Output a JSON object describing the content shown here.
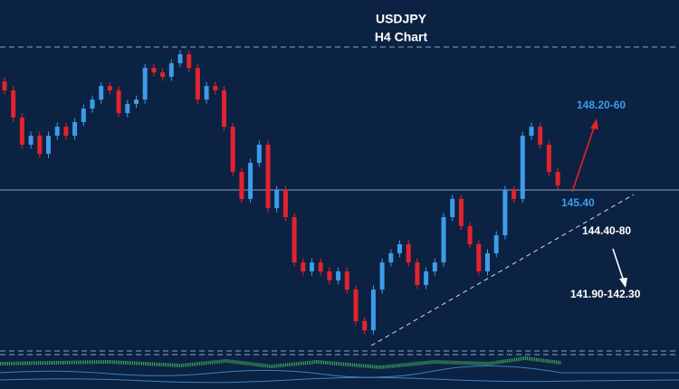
{
  "chart_data": {
    "type": "candlestick",
    "title": "USDJPY",
    "subtitle": "H4 Chart",
    "ylim": [
      139.7,
      150.7
    ],
    "up_color": "#3d9ce8",
    "down_color": "#e3232d",
    "level": 145.4,
    "annotations": [
      "148.20-60",
      "145.40",
      "144.40-80",
      "141.90-142.30"
    ],
    "open": [
      149.4,
      149.07,
      148.07,
      147.07,
      147.4,
      146.73,
      147.4,
      147.73,
      147.4,
      147.9,
      148.4,
      148.73,
      149.23,
      149.07,
      148.23,
      148.57,
      148.73,
      149.9,
      149.73,
      149.57,
      150.07,
      150.4,
      149.9,
      148.73,
      149.23,
      149.07,
      147.73,
      146.07,
      145.07,
      146.4,
      147.07,
      144.73,
      145.4,
      144.4,
      142.73,
      142.4,
      142.73,
      142.4,
      142.07,
      142.4,
      141.73,
      140.57,
      140.23,
      141.73,
      142.73,
      143.07,
      143.4,
      142.73,
      141.9,
      142.4,
      142.73,
      144.4,
      145.07,
      144.07,
      143.4,
      142.4,
      143.07,
      143.73,
      145.4,
      145.07,
      147.4,
      147.73,
      147.07,
      146.07
    ],
    "high": [
      149.55,
      149.22,
      148.22,
      147.55,
      147.55,
      147.55,
      147.88,
      147.88,
      148.05,
      148.55,
      148.88,
      149.38,
      149.38,
      149.22,
      148.72,
      148.88,
      150.05,
      150.05,
      149.88,
      150.22,
      150.55,
      150.55,
      150.05,
      149.38,
      149.38,
      149.22,
      147.88,
      146.22,
      146.55,
      147.22,
      147.22,
      145.55,
      145.55,
      144.55,
      142.88,
      142.88,
      142.88,
      142.55,
      142.55,
      142.55,
      141.88,
      140.72,
      141.88,
      142.88,
      143.22,
      143.55,
      143.55,
      142.88,
      142.55,
      142.88,
      144.55,
      145.22,
      145.22,
      144.22,
      143.55,
      143.22,
      143.88,
      145.55,
      145.55,
      147.55,
      147.88,
      147.88,
      147.22,
      146.22
    ],
    "low": [
      148.92,
      147.92,
      146.92,
      146.92,
      146.58,
      146.58,
      147.25,
      147.25,
      147.25,
      147.75,
      148.25,
      148.58,
      148.92,
      148.08,
      148.08,
      148.42,
      148.58,
      149.58,
      149.42,
      149.42,
      149.92,
      149.75,
      148.58,
      148.58,
      148.92,
      147.58,
      145.92,
      144.92,
      144.92,
      146.25,
      144.58,
      144.58,
      144.25,
      142.58,
      142.25,
      142.25,
      142.25,
      141.92,
      141.92,
      141.58,
      140.42,
      140.08,
      140.08,
      141.58,
      142.58,
      142.92,
      142.58,
      141.75,
      141.75,
      142.25,
      142.58,
      144.25,
      143.92,
      143.25,
      142.25,
      142.25,
      142.92,
      143.58,
      144.92,
      144.92,
      147.25,
      146.92,
      145.92,
      145.42
    ],
    "close": [
      149.07,
      148.07,
      147.07,
      147.4,
      146.73,
      147.4,
      147.73,
      147.4,
      147.9,
      148.4,
      148.73,
      149.23,
      149.07,
      148.23,
      148.57,
      148.73,
      149.9,
      149.73,
      149.57,
      150.07,
      150.4,
      149.9,
      148.73,
      149.23,
      149.07,
      147.73,
      146.07,
      145.07,
      146.4,
      147.07,
      144.73,
      145.4,
      144.4,
      142.73,
      142.4,
      142.73,
      142.4,
      142.07,
      142.4,
      141.73,
      140.57,
      140.23,
      141.73,
      142.73,
      143.07,
      143.4,
      142.73,
      141.9,
      142.4,
      142.73,
      144.4,
      145.07,
      144.07,
      143.4,
      142.4,
      143.07,
      143.73,
      145.4,
      145.07,
      147.4,
      147.73,
      147.07,
      146.07,
      145.57
    ]
  }
}
